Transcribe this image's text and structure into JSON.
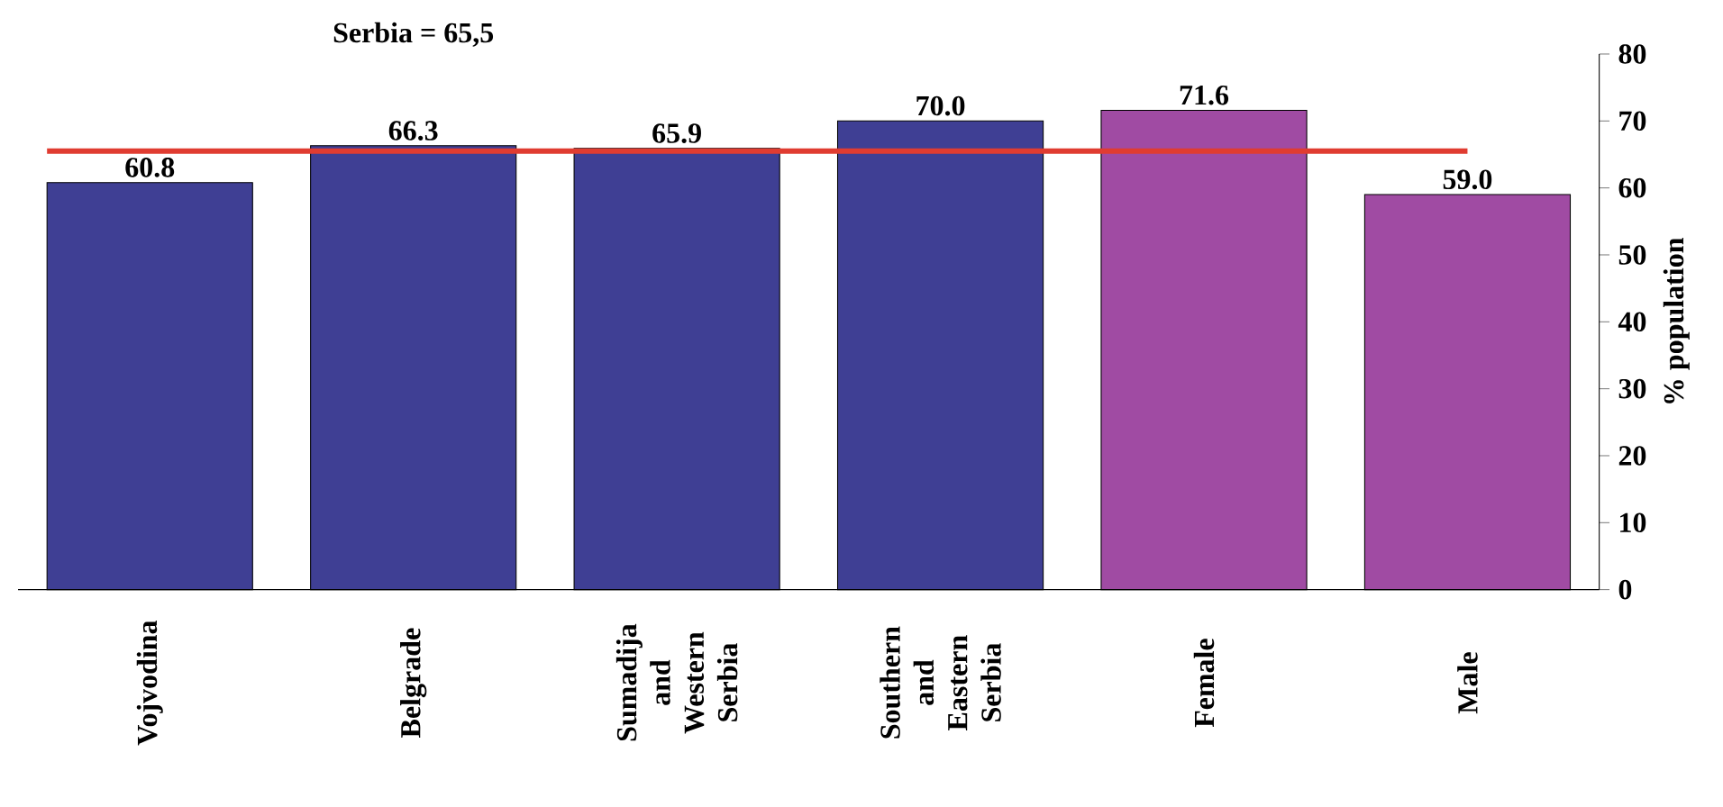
{
  "chart_data": {
    "type": "bar",
    "ylabel": "% population",
    "categories": [
      "Vojvodina",
      "Belgrade",
      "Sumadija and Western Serbia",
      "Southern and Eastern Serbia",
      "Female",
      "Male"
    ],
    "values": [
      60.8,
      66.3,
      65.9,
      70.0,
      71.6,
      59.0
    ],
    "colors": [
      "#3f3f94",
      "#3f3f94",
      "#3f3f94",
      "#3f3f94",
      "#a04ba3",
      "#a04ba3"
    ],
    "ylim": [
      0,
      80
    ],
    "yticks": [
      0,
      10,
      20,
      30,
      40,
      50,
      60,
      70,
      80
    ],
    "value_labels": [
      "60.8",
      "66.3",
      "65.9",
      "70.0",
      "71.6",
      "59.0"
    ],
    "annotations": [
      "Serbia = 65,5"
    ],
    "ref_lines": [
      {
        "axis": "y",
        "value": 65.5,
        "color": "#e03c31"
      }
    ]
  }
}
